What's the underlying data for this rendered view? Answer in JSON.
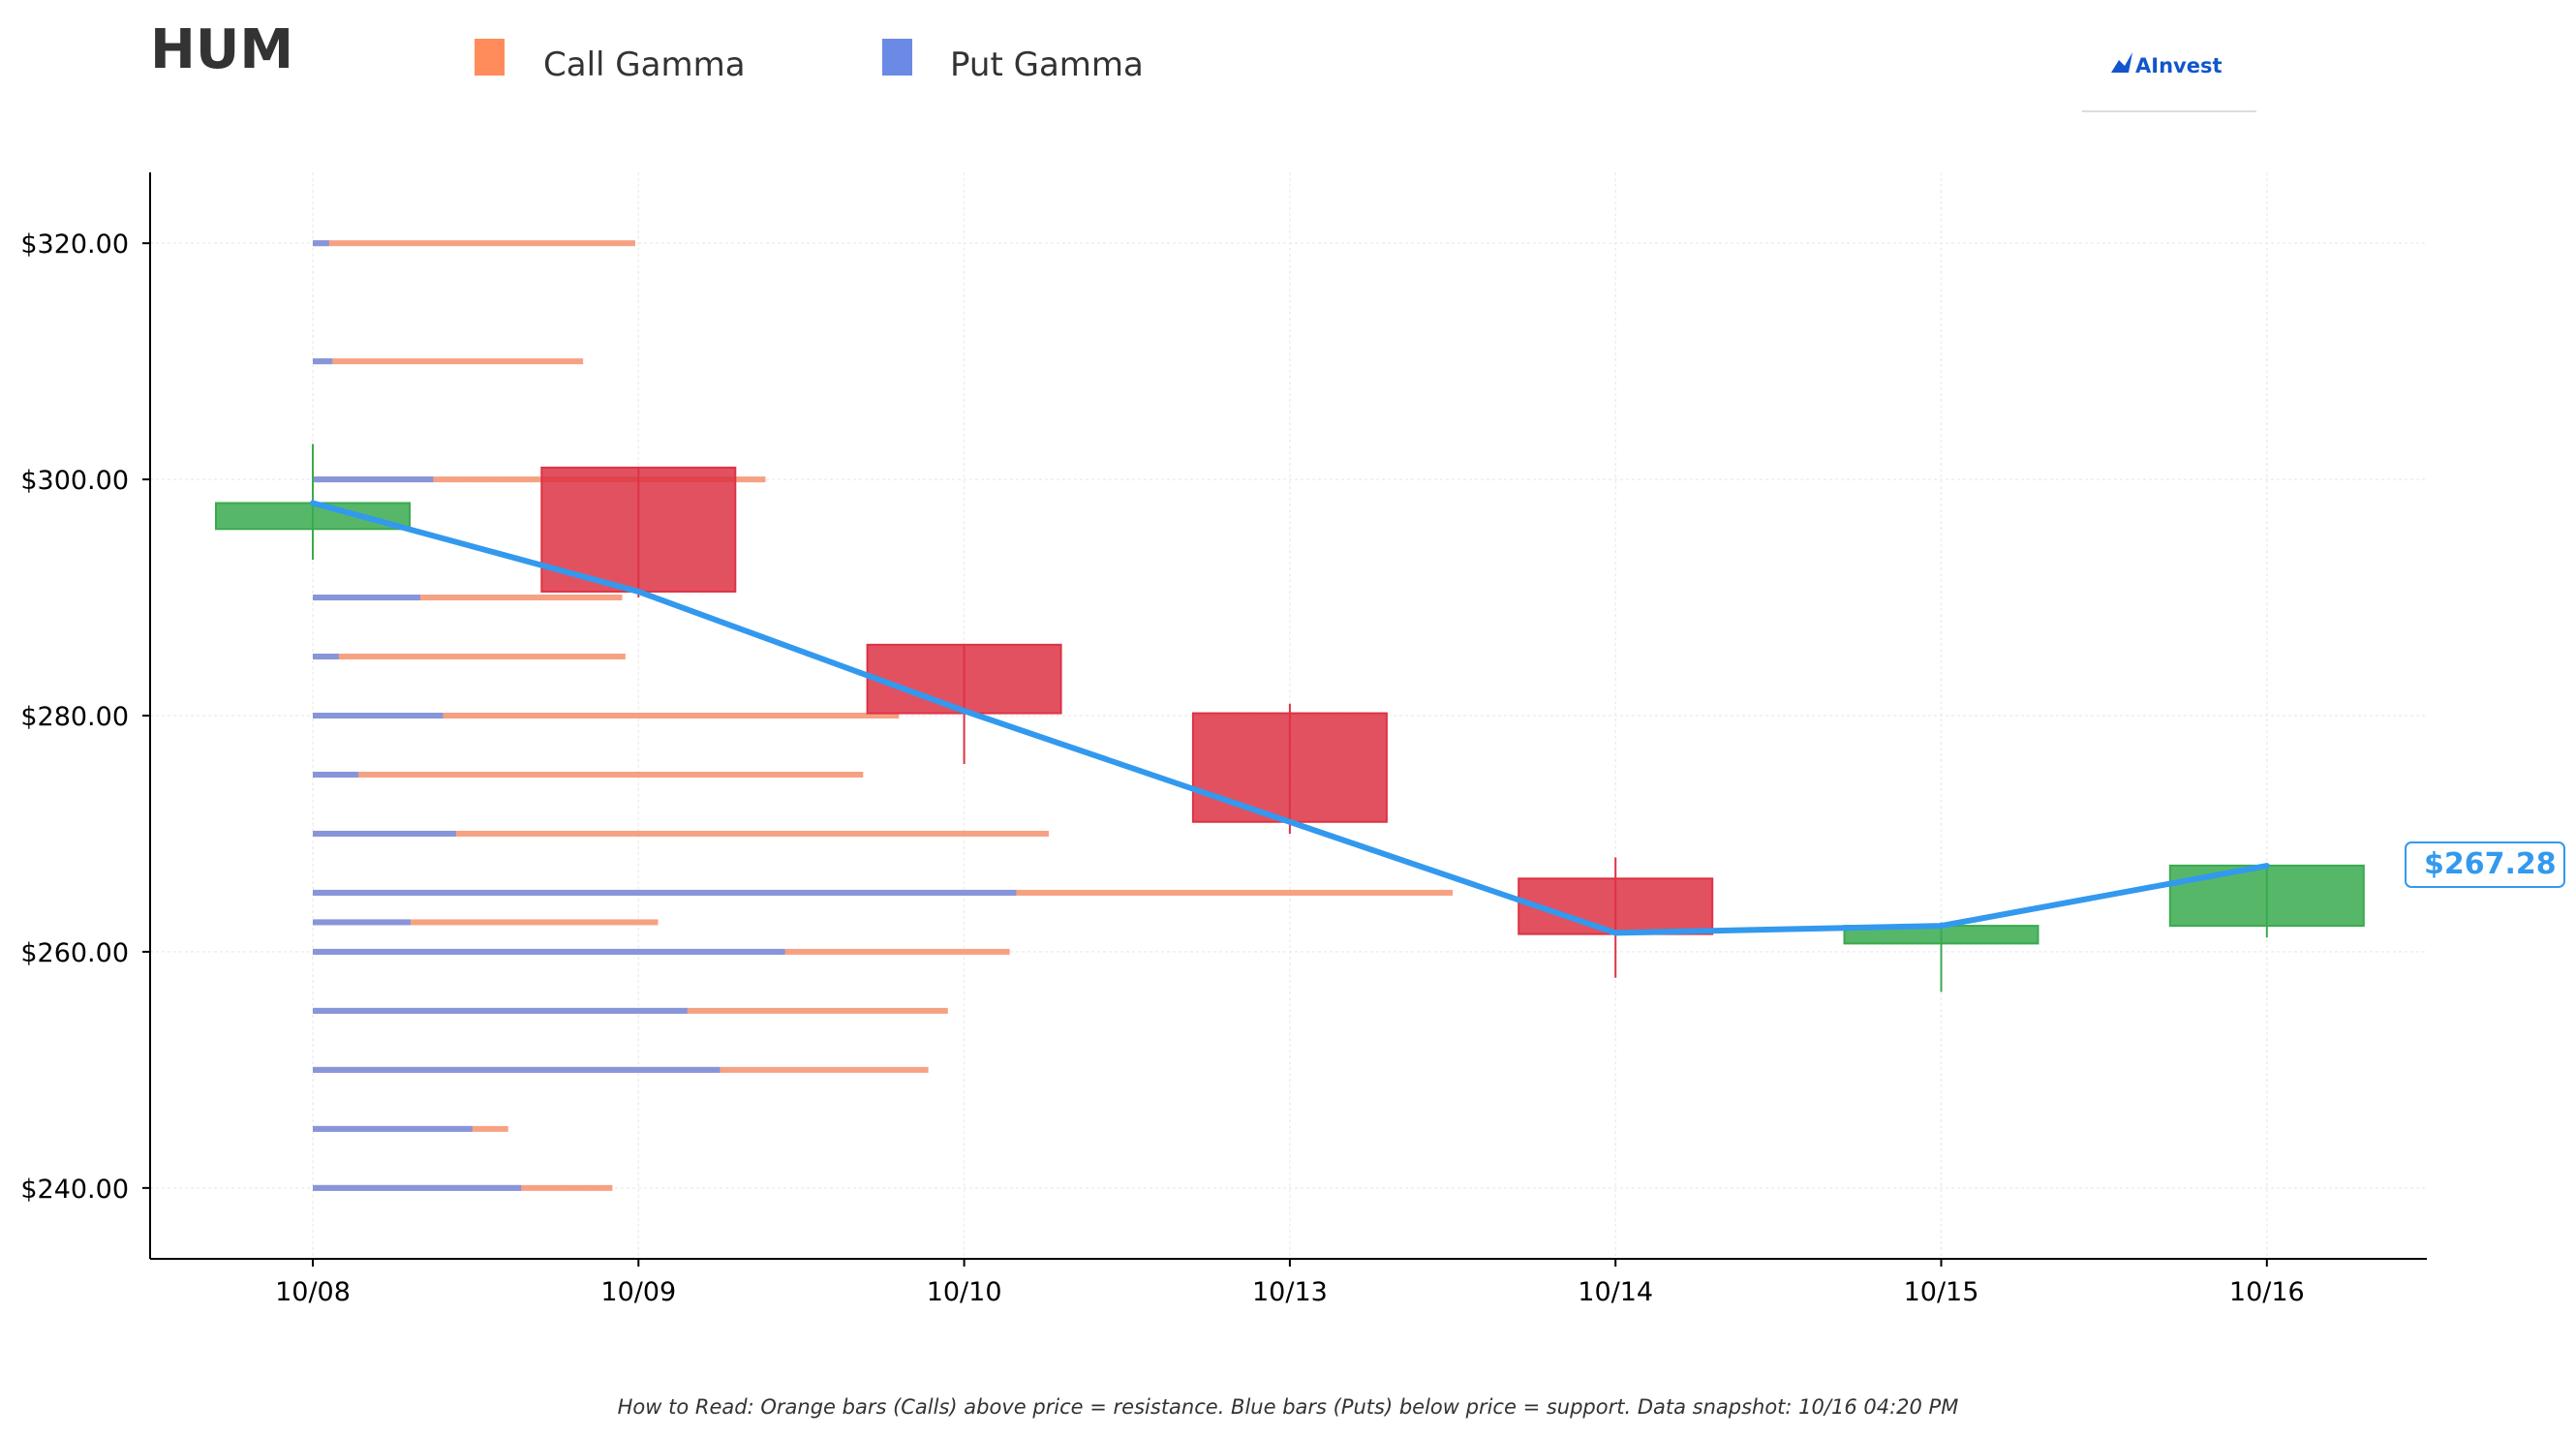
{
  "chart_data": {
    "type": "candlestick",
    "title": "HUM",
    "legend": [
      {
        "label": "Call Gamma",
        "color": "#ff8c5a"
      },
      {
        "label": "Put Gamma",
        "color": "#6b8ae6"
      }
    ],
    "logo_text": "AInvest",
    "categories": [
      "10/08",
      "10/09",
      "10/10",
      "10/13",
      "10/14",
      "10/15",
      "10/16"
    ],
    "ylim": [
      234,
      326
    ],
    "yticks": [
      240,
      260,
      280,
      300,
      320
    ],
    "ytick_labels": [
      "$240.00",
      "$260.00",
      "$280.00",
      "$300.00",
      "$320.00"
    ],
    "grid": true,
    "candles": [
      {
        "date": "10/08",
        "open": 295.8,
        "close": 298.0,
        "high": 303.0,
        "low": 293.2
      },
      {
        "date": "10/09",
        "open": 301.0,
        "close": 290.5,
        "high": 301.0,
        "low": 290.0
      },
      {
        "date": "10/10",
        "open": 286.0,
        "close": 280.2,
        "high": 286.0,
        "low": 275.9
      },
      {
        "date": "10/13",
        "open": 280.2,
        "close": 271.0,
        "high": 281.0,
        "low": 270.0
      },
      {
        "date": "10/14",
        "open": 266.2,
        "close": 261.5,
        "high": 268.0,
        "low": 257.8
      },
      {
        "date": "10/15",
        "open": 260.7,
        "close": 262.2,
        "high": 262.5,
        "low": 256.6
      },
      {
        "date": "10/16",
        "open": 262.2,
        "close": 267.3,
        "high": 267.3,
        "low": 261.2
      }
    ],
    "price_line": {
      "color": "#3399ee",
      "points": [
        298.0,
        290.5,
        280.4,
        271.0,
        261.6,
        262.2,
        267.28
      ]
    },
    "last_price_label": "$267.28",
    "gamma_bars": {
      "note": "bar lengths in days from 10/08 along the date axis",
      "levels": [
        {
          "strike": 320,
          "put": 0.05,
          "call": 0.99
        },
        {
          "strike": 310,
          "put": 0.06,
          "call": 0.83
        },
        {
          "strike": 300,
          "put": 0.37,
          "call": 1.39
        },
        {
          "strike": 290,
          "put": 0.33,
          "call": 0.95
        },
        {
          "strike": 285,
          "put": 0.08,
          "call": 0.96
        },
        {
          "strike": 280,
          "put": 0.4,
          "call": 1.8
        },
        {
          "strike": 275,
          "put": 0.14,
          "call": 1.69
        },
        {
          "strike": 270,
          "put": 0.44,
          "call": 2.26
        },
        {
          "strike": 265,
          "put": 2.16,
          "call": 3.5
        },
        {
          "strike": 262.5,
          "put": 0.3,
          "call": 1.06
        },
        {
          "strike": 260,
          "put": 1.45,
          "call": 2.14
        },
        {
          "strike": 255,
          "put": 1.15,
          "call": 1.95
        },
        {
          "strike": 250,
          "put": 1.25,
          "call": 1.89
        },
        {
          "strike": 245,
          "put": 0.49,
          "call": 0.6
        },
        {
          "strike": 240,
          "put": 0.64,
          "call": 0.92
        }
      ]
    },
    "colors": {
      "up": "#3aaa4f",
      "down": "#dd3344",
      "call": "#f4906c",
      "put": "#7b94e3",
      "grid": "#eeeeee"
    }
  },
  "footnote": "How to Read: Orange bars (Calls) above price = resistance. Blue bars (Puts) below price = support. Data snapshot: 10/16 04:20 PM"
}
